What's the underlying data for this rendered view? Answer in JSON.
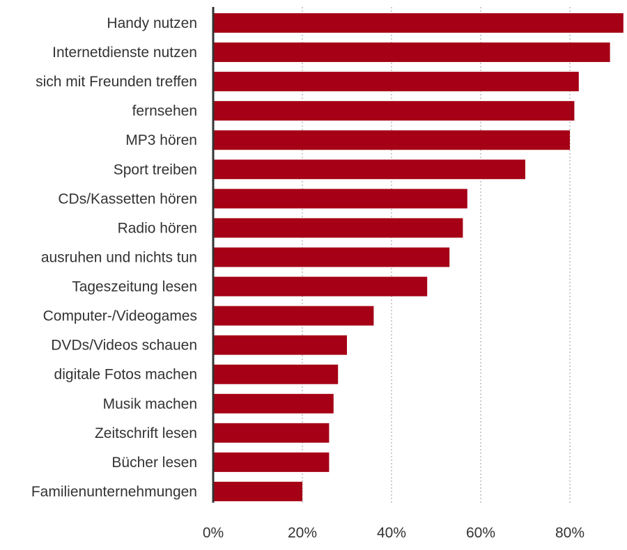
{
  "chart_data": {
    "type": "bar",
    "orientation": "horizontal",
    "title": "",
    "xlabel": "",
    "ylabel": "",
    "xlim": [
      0,
      100
    ],
    "x_ticks": [
      "0%",
      "20%",
      "40%",
      "60%",
      "80%"
    ],
    "x_tick_values": [
      0,
      20,
      40,
      60,
      80
    ],
    "grid": true,
    "bar_color": "#a50015",
    "categories": [
      "Handy nutzen",
      "Internetdienste nutzen",
      "sich mit Freunden treffen",
      "fernsehen",
      "MP3 hören",
      "Sport treiben",
      "CDs/Kassetten hören",
      "Radio hören",
      "ausruhen und nichts tun",
      "Tageszeitung lesen",
      "Computer-/Videogames",
      "DVDs/Videos schauen",
      "digitale Fotos machen",
      "Musik machen",
      "Zeitschrift lesen",
      "Bücher lesen",
      "Familienunternehmungen"
    ],
    "values": [
      92,
      89,
      82,
      81,
      80,
      70,
      57,
      56,
      53,
      48,
      36,
      30,
      28,
      27,
      26,
      26,
      20
    ]
  }
}
